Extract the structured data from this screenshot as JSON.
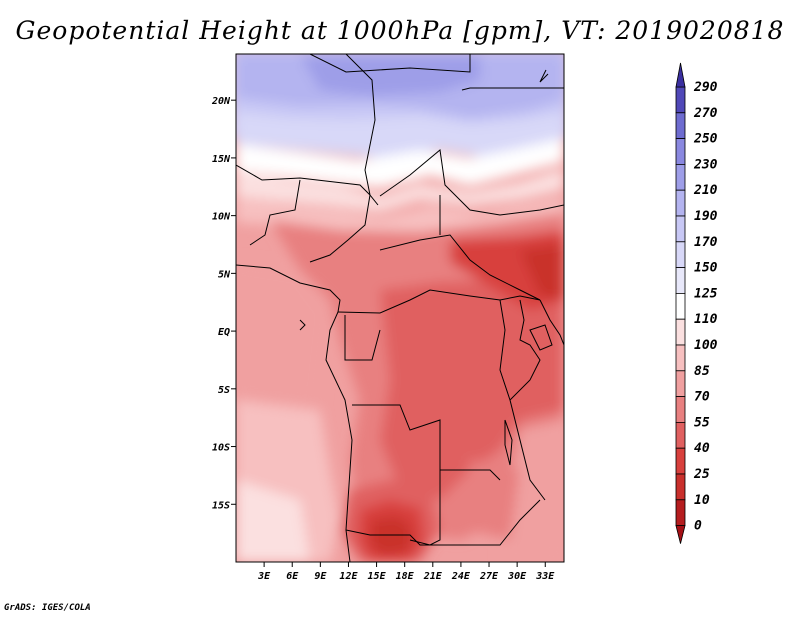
{
  "title": "Geopotential Height at 1000hPa [gpm], VT: 2019020818",
  "credit": "GrADS: IGES/COLA",
  "chart_data": {
    "type": "heatmap",
    "variable": "Geopotential Height at 1000hPa",
    "units": "gpm",
    "valid_time": "2019020818",
    "lon_range": [
      0,
      35
    ],
    "lat_range": [
      -20,
      24
    ],
    "x_ticks": [
      "3E",
      "6E",
      "9E",
      "12E",
      "15E",
      "18E",
      "21E",
      "24E",
      "27E",
      "30E",
      "33E"
    ],
    "x_tick_values": [
      3,
      6,
      9,
      12,
      15,
      18,
      21,
      24,
      27,
      30,
      33
    ],
    "y_ticks": [
      "20N",
      "15N",
      "10N",
      "5N",
      "EQ",
      "5S",
      "10S",
      "15S"
    ],
    "y_tick_values": [
      20,
      15,
      10,
      5,
      0,
      -5,
      -10,
      -15
    ],
    "colorbar_levels": [
      0,
      10,
      25,
      40,
      55,
      70,
      85,
      100,
      110,
      125,
      150,
      170,
      190,
      210,
      230,
      250,
      270,
      290
    ],
    "colorbar_labels": [
      "290",
      "270",
      "250",
      "230",
      "210",
      "190",
      "170",
      "150",
      "125",
      "110",
      "100",
      "85",
      "70",
      "55",
      "40",
      "25",
      "10",
      "0"
    ],
    "colorbar_colors": [
      "#a50f15",
      "#b51d1f",
      "#c9302c",
      "#d8403d",
      "#e06060",
      "#e88080",
      "#f0a0a0",
      "#f7c0c0",
      "#fbe0e0",
      "#ffffff",
      "#e8e8fa",
      "#d8d8f8",
      "#c8c8f5",
      "#b4b4f0",
      "#9e9ee8",
      "#8a88e0",
      "#6e6cd0",
      "#5048b8",
      "#3a2fa0"
    ]
  }
}
